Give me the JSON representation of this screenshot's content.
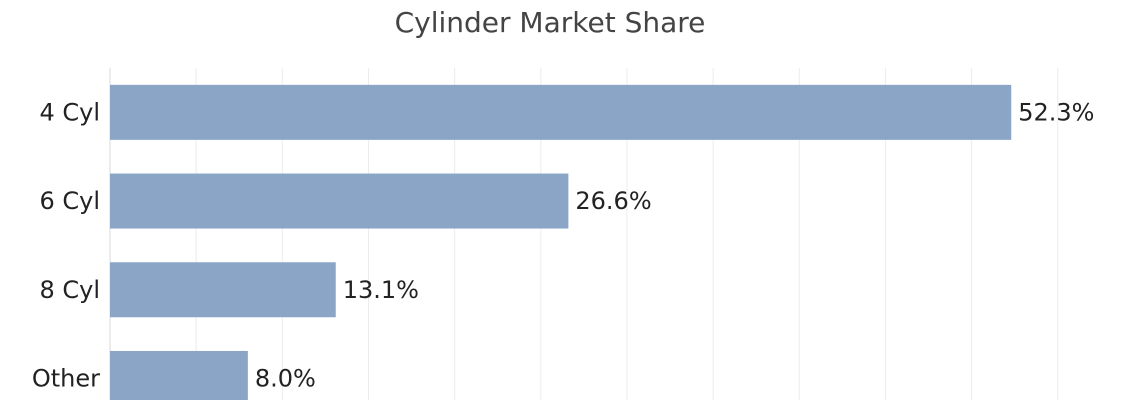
{
  "chart_data": {
    "type": "bar",
    "orientation": "horizontal",
    "title": "Cylinder Market Share",
    "categories": [
      "4 Cyl",
      "6 Cyl",
      "8 Cyl",
      "Other"
    ],
    "values": [
      52.3,
      26.6,
      13.1,
      8.0
    ],
    "value_labels": [
      "52.3%",
      "26.6%",
      "13.1%",
      "8.0%"
    ],
    "color": "#8ba5c6",
    "xlim": [
      0,
      56
    ],
    "xticks": [
      0,
      5,
      10,
      15,
      20,
      25,
      30,
      35,
      40,
      45,
      50,
      55
    ],
    "grid": true
  }
}
